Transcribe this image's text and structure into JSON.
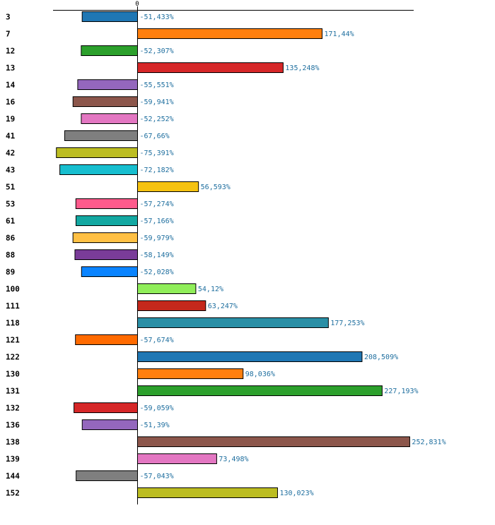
{
  "chart_data": {
    "type": "bar",
    "orientation": "horizontal",
    "title": "",
    "xlabel": "",
    "ylabel": "",
    "x_ticks": [
      {
        "value": 0,
        "label": "0"
      }
    ],
    "xlim": [
      -100,
      252.831
    ],
    "grid": false,
    "legend": "none",
    "categories": [
      "3",
      "7",
      "12",
      "13",
      "14",
      "16",
      "19",
      "41",
      "42",
      "43",
      "51",
      "53",
      "61",
      "86",
      "88",
      "89",
      "100",
      "111",
      "118",
      "121",
      "122",
      "130",
      "131",
      "132",
      "136",
      "138",
      "139",
      "144",
      "152"
    ],
    "values": [
      -51.433,
      171.44,
      -52.307,
      135.248,
      -55.551,
      -59.941,
      -52.252,
      -67.66,
      -75.391,
      -72.182,
      56.593,
      -57.274,
      -57.166,
      -59.979,
      -58.149,
      -52.028,
      54.12,
      63.247,
      177.253,
      -57.674,
      208.509,
      98.036,
      227.193,
      -59.059,
      -51.39,
      252.831,
      73.498,
      -57.043,
      130.023
    ],
    "value_labels": [
      "-51,433%",
      "171,44%",
      "-52,307%",
      "135,248%",
      "-55,551%",
      "-59,941%",
      "-52,252%",
      "-67,66%",
      "-75,391%",
      "-72,182%",
      "56,593%",
      "-57,274%",
      "-57,166%",
      "-59,979%",
      "-58,149%",
      "-52,028%",
      "54,12%",
      "63,247%",
      "177,253%",
      "-57,674%",
      "208,509%",
      "98,036%",
      "227,193%",
      "-59,059%",
      "-51,39%",
      "252,831%",
      "73,498%",
      "-57,043%",
      "130,023%"
    ],
    "colors": [
      "#1f77b4",
      "#ff7f0e",
      "#2ca02c",
      "#d62728",
      "#9467bd",
      "#8c564b",
      "#e377c2",
      "#7f7f7f",
      "#bcbd22",
      "#17becf",
      "#f5c211",
      "#ff5a8c",
      "#13a8a2",
      "#ffc044",
      "#7a3c99",
      "#0a84ff",
      "#90ee5a",
      "#c4281c",
      "#2a8fa6",
      "#ff6a00",
      "#1f77b4",
      "#ff7f0e",
      "#2ca02c",
      "#d62728",
      "#9467bd",
      "#8c564b",
      "#e377c2",
      "#7f7f7f",
      "#bcbd22"
    ]
  }
}
